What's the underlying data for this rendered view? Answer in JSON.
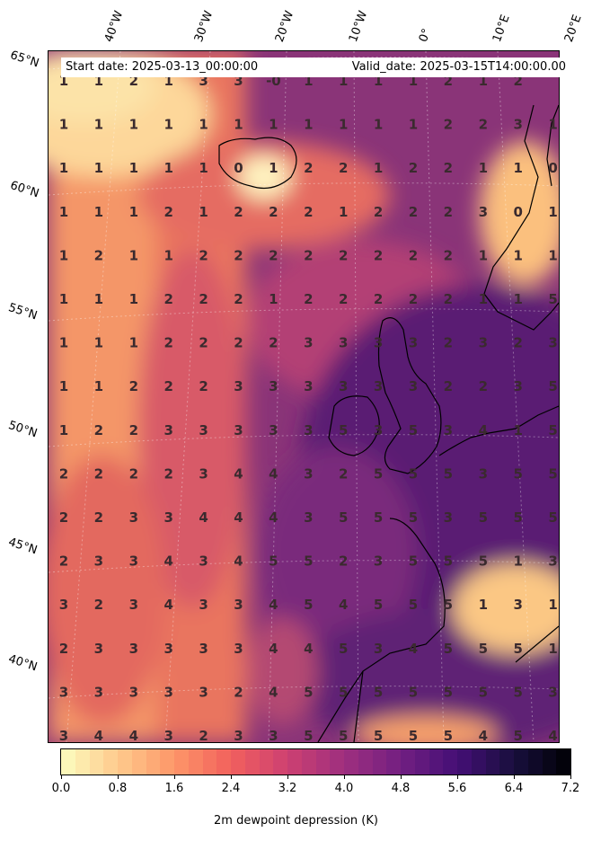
{
  "header": {
    "start_date": "Start date: 2025-03-13_00:00:00",
    "valid_date": "Valid_date: 2025-03-15T14:00:00.00"
  },
  "axes": {
    "lat_labels": [
      "65°N",
      "60°N",
      "55°N",
      "50°N",
      "45°N",
      "40°N"
    ],
    "lon_labels": [
      "40°W",
      "30°W",
      "20°W",
      "10°W",
      "0°",
      "10°E",
      "20°E"
    ]
  },
  "grid_values": [
    [
      "1",
      "1",
      "2",
      "1",
      "3",
      "3",
      "-0",
      "1",
      "1",
      "1",
      "1",
      "2",
      "1",
      "2",
      ""
    ],
    [
      "1",
      "1",
      "1",
      "1",
      "1",
      "1",
      "1",
      "1",
      "1",
      "1",
      "1",
      "2",
      "2",
      "3",
      "1"
    ],
    [
      "1",
      "1",
      "1",
      "1",
      "1",
      "0",
      "1",
      "2",
      "2",
      "1",
      "2",
      "2",
      "1",
      "1",
      "0"
    ],
    [
      "1",
      "1",
      "1",
      "2",
      "1",
      "2",
      "2",
      "2",
      "1",
      "2",
      "2",
      "2",
      "3",
      "0",
      "1"
    ],
    [
      "1",
      "2",
      "1",
      "1",
      "2",
      "2",
      "2",
      "2",
      "2",
      "2",
      "2",
      "2",
      "1",
      "1",
      "1"
    ],
    [
      "1",
      "1",
      "1",
      "2",
      "2",
      "2",
      "1",
      "2",
      "2",
      "2",
      "2",
      "2",
      "1",
      "1",
      "5"
    ],
    [
      "1",
      "1",
      "1",
      "2",
      "2",
      "2",
      "2",
      "3",
      "3",
      "3",
      "3",
      "2",
      "3",
      "2",
      "3"
    ],
    [
      "1",
      "1",
      "2",
      "2",
      "2",
      "3",
      "3",
      "3",
      "3",
      "3",
      "3",
      "2",
      "2",
      "3",
      "5"
    ],
    [
      "1",
      "2",
      "2",
      "3",
      "3",
      "3",
      "3",
      "3",
      "5",
      "3",
      "5",
      "3",
      "4",
      "1",
      "5"
    ],
    [
      "2",
      "2",
      "2",
      "2",
      "3",
      "4",
      "4",
      "3",
      "2",
      "5",
      "5",
      "5",
      "3",
      "5",
      "5"
    ],
    [
      "2",
      "2",
      "3",
      "3",
      "4",
      "4",
      "4",
      "3",
      "5",
      "5",
      "5",
      "3",
      "5",
      "5",
      "5"
    ],
    [
      "2",
      "3",
      "3",
      "4",
      "3",
      "4",
      "5",
      "5",
      "2",
      "3",
      "5",
      "5",
      "5",
      "1",
      "3"
    ],
    [
      "3",
      "2",
      "3",
      "4",
      "3",
      "3",
      "4",
      "5",
      "4",
      "5",
      "5",
      "5",
      "1",
      "3",
      "1"
    ],
    [
      "2",
      "3",
      "3",
      "3",
      "3",
      "3",
      "4",
      "4",
      "5",
      "3",
      "4",
      "5",
      "5",
      "5",
      "1"
    ],
    [
      "3",
      "3",
      "3",
      "3",
      "3",
      "2",
      "4",
      "5",
      "5",
      "5",
      "5",
      "5",
      "5",
      "5",
      "3"
    ],
    [
      "3",
      "4",
      "4",
      "3",
      "2",
      "3",
      "3",
      "5",
      "5",
      "5",
      "5",
      "5",
      "4",
      "5",
      "4"
    ]
  ],
  "colorbar": {
    "label": "2m dewpoint depression (K)",
    "min": 0.0,
    "max": 7.2,
    "ticks": [
      "0.0",
      "0.8",
      "1.6",
      "2.4",
      "3.2",
      "4.0",
      "4.8",
      "5.6",
      "6.4",
      "7.2"
    ],
    "colormap": "magma_r",
    "stops": [
      "#fcfdbf",
      "#feca8d",
      "#fd9668",
      "#f1605d",
      "#cd4071",
      "#9e2f7f",
      "#721f81",
      "#440f76",
      "#180f3d",
      "#000004"
    ]
  }
}
